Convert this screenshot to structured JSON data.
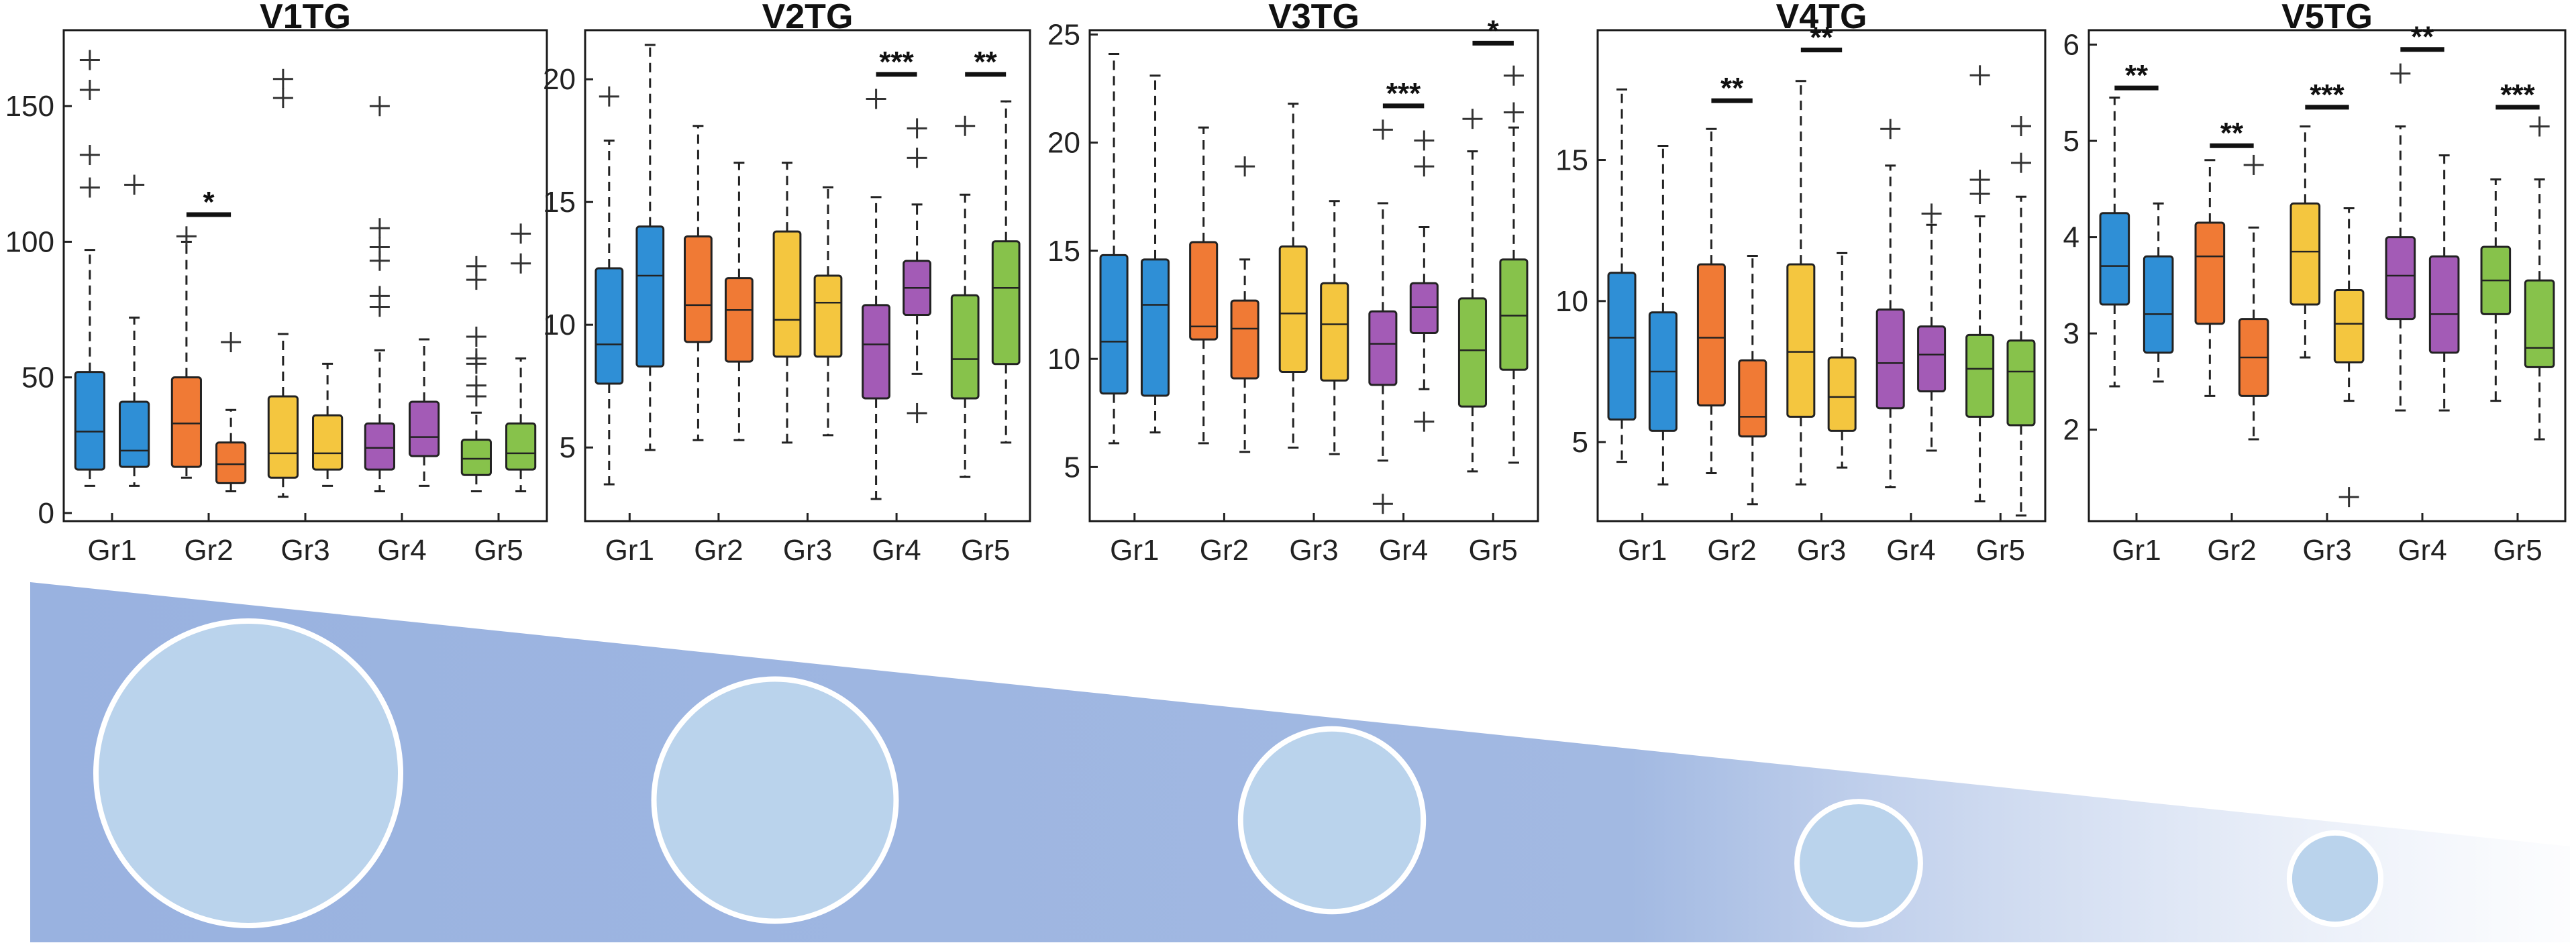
{
  "chart_data": [
    {
      "type": "box",
      "title": "V1TG",
      "ylim": [
        -3,
        178
      ],
      "yticks": [
        0,
        50,
        100,
        150
      ],
      "categories": [
        "Gr1",
        "Gr2",
        "Gr3",
        "Gr4",
        "Gr5"
      ],
      "colors": [
        "#2f8fd6",
        "#f07a35",
        "#f4c63f",
        "#a35bb6",
        "#87c24b"
      ],
      "boxes": [
        {
          "group": 0,
          "q1": 16,
          "median": 30,
          "q3": 52,
          "whisker_low": 10,
          "whisker_high": 97,
          "outliers": [
            167,
            156,
            132,
            120
          ]
        },
        {
          "group": 0,
          "q1": 17,
          "median": 23,
          "q3": 41,
          "whisker_low": 10,
          "whisker_high": 72,
          "outliers": [
            121
          ]
        },
        {
          "group": 1,
          "q1": 17,
          "median": 33,
          "q3": 50,
          "whisker_low": 13,
          "whisker_high": 100,
          "outliers": [
            102
          ]
        },
        {
          "group": 1,
          "q1": 11,
          "median": 18,
          "q3": 26,
          "whisker_low": 8,
          "whisker_high": 38,
          "outliers": [
            63
          ]
        },
        {
          "group": 2,
          "q1": 13,
          "median": 22,
          "q3": 43,
          "whisker_low": 6,
          "whisker_high": 66,
          "outliers": [
            160,
            153
          ]
        },
        {
          "group": 2,
          "q1": 16,
          "median": 22,
          "q3": 36,
          "whisker_low": 10,
          "whisker_high": 55,
          "outliers": []
        },
        {
          "group": 3,
          "q1": 16,
          "median": 24,
          "q3": 33,
          "whisker_low": 8,
          "whisker_high": 60,
          "outliers": [
            150,
            105,
            98,
            93,
            80,
            76
          ]
        },
        {
          "group": 3,
          "q1": 21,
          "median": 28,
          "q3": 41,
          "whisker_low": 10,
          "whisker_high": 64,
          "outliers": []
        },
        {
          "group": 4,
          "q1": 14,
          "median": 20,
          "q3": 27,
          "whisker_low": 8,
          "whisker_high": 37,
          "outliers": [
            91,
            86,
            65,
            57,
            55,
            47,
            43
          ]
        },
        {
          "group": 4,
          "q1": 16,
          "median": 22,
          "q3": 33,
          "whisker_low": 8,
          "whisker_high": 57,
          "outliers": [
            103,
            92
          ]
        }
      ],
      "significance": [
        {
          "group": 1,
          "label": "*",
          "y": 110
        }
      ]
    },
    {
      "type": "box",
      "title": "V2TG",
      "ylim": [
        2,
        22
      ],
      "yticks": [
        5,
        10,
        15,
        20
      ],
      "categories": [
        "Gr1",
        "Gr2",
        "Gr3",
        "Gr4",
        "Gr5"
      ],
      "colors": [
        "#2f8fd6",
        "#f07a35",
        "#f4c63f",
        "#a35bb6",
        "#87c24b"
      ],
      "boxes": [
        {
          "group": 0,
          "q1": 7.6,
          "median": 9.2,
          "q3": 12.3,
          "whisker_low": 3.5,
          "whisker_high": 17.5,
          "outliers": [
            19.3
          ]
        },
        {
          "group": 0,
          "q1": 8.3,
          "median": 12.0,
          "q3": 14.0,
          "whisker_low": 4.9,
          "whisker_high": 21.4,
          "outliers": []
        },
        {
          "group": 1,
          "q1": 9.3,
          "median": 10.8,
          "q3": 13.6,
          "whisker_low": 5.3,
          "whisker_high": 18.1,
          "outliers": []
        },
        {
          "group": 1,
          "q1": 8.5,
          "median": 10.6,
          "q3": 11.9,
          "whisker_low": 5.3,
          "whisker_high": 16.6,
          "outliers": []
        },
        {
          "group": 2,
          "q1": 8.7,
          "median": 10.2,
          "q3": 13.8,
          "whisker_low": 5.2,
          "whisker_high": 16.6,
          "outliers": []
        },
        {
          "group": 2,
          "q1": 8.7,
          "median": 10.9,
          "q3": 12.0,
          "whisker_low": 5.5,
          "whisker_high": 15.6,
          "outliers": []
        },
        {
          "group": 3,
          "q1": 7.0,
          "median": 9.2,
          "q3": 10.8,
          "whisker_low": 2.9,
          "whisker_high": 15.2,
          "outliers": [
            19.2
          ]
        },
        {
          "group": 3,
          "q1": 10.4,
          "median": 11.5,
          "q3": 12.6,
          "whisker_low": 8.0,
          "whisker_high": 14.9,
          "outliers": [
            18.0,
            16.8,
            6.4
          ]
        },
        {
          "group": 4,
          "q1": 7.0,
          "median": 8.6,
          "q3": 11.2,
          "whisker_low": 3.8,
          "whisker_high": 15.3,
          "outliers": [
            18.1
          ]
        },
        {
          "group": 4,
          "q1": 8.4,
          "median": 11.5,
          "q3": 13.4,
          "whisker_low": 5.2,
          "whisker_high": 19.1,
          "outliers": []
        }
      ],
      "significance": [
        {
          "group": 3,
          "label": "***",
          "y": 20.2
        },
        {
          "group": 4,
          "label": "**",
          "y": 20.2
        }
      ]
    },
    {
      "type": "box",
      "title": "V3TG",
      "ylim": [
        2.5,
        25.2
      ],
      "yticks": [
        5,
        10,
        15,
        20,
        25
      ],
      "categories": [
        "Gr1",
        "Gr2",
        "Gr3",
        "Gr4",
        "Gr5"
      ],
      "colors": [
        "#2f8fd6",
        "#f07a35",
        "#f4c63f",
        "#a35bb6",
        "#87c24b"
      ],
      "boxes": [
        {
          "group": 0,
          "q1": 8.4,
          "median": 10.8,
          "q3": 14.8,
          "whisker_low": 6.1,
          "whisker_high": 24.1,
          "outliers": []
        },
        {
          "group": 0,
          "q1": 8.3,
          "median": 12.5,
          "q3": 14.6,
          "whisker_low": 6.6,
          "whisker_high": 23.1,
          "outliers": []
        },
        {
          "group": 1,
          "q1": 10.9,
          "median": 11.5,
          "q3": 15.4,
          "whisker_low": 6.1,
          "whisker_high": 20.7,
          "outliers": []
        },
        {
          "group": 1,
          "q1": 9.1,
          "median": 11.4,
          "q3": 12.7,
          "whisker_low": 5.7,
          "whisker_high": 14.6,
          "outliers": [
            18.9
          ]
        },
        {
          "group": 2,
          "q1": 9.4,
          "median": 12.1,
          "q3": 15.2,
          "whisker_low": 5.9,
          "whisker_high": 21.8,
          "outliers": []
        },
        {
          "group": 2,
          "q1": 9.0,
          "median": 11.6,
          "q3": 13.5,
          "whisker_low": 5.6,
          "whisker_high": 17.3,
          "outliers": []
        },
        {
          "group": 3,
          "q1": 8.8,
          "median": 10.7,
          "q3": 12.2,
          "whisker_low": 5.3,
          "whisker_high": 17.2,
          "outliers": [
            20.6,
            3.3
          ]
        },
        {
          "group": 3,
          "q1": 11.2,
          "median": 12.4,
          "q3": 13.5,
          "whisker_low": 8.6,
          "whisker_high": 16.1,
          "outliers": [
            20.1,
            18.9,
            7.1
          ]
        },
        {
          "group": 4,
          "q1": 7.8,
          "median": 10.4,
          "q3": 12.8,
          "whisker_low": 4.8,
          "whisker_high": 19.6,
          "outliers": [
            21.1
          ]
        },
        {
          "group": 4,
          "q1": 9.5,
          "median": 12.0,
          "q3": 14.6,
          "whisker_low": 5.2,
          "whisker_high": 20.7,
          "outliers": [
            23.1,
            21.4
          ]
        }
      ],
      "significance": [
        {
          "group": 3,
          "label": "***",
          "y": 21.7
        },
        {
          "group": 4,
          "label": "*",
          "y": 24.6
        }
      ]
    },
    {
      "type": "box",
      "title": "V4TG",
      "ylim": [
        2.2,
        19.6
      ],
      "yticks": [
        5,
        10,
        15
      ],
      "categories": [
        "Gr1",
        "Gr2",
        "Gr3",
        "Gr4",
        "Gr5"
      ],
      "colors": [
        "#2f8fd6",
        "#f07a35",
        "#f4c63f",
        "#a35bb6",
        "#87c24b"
      ],
      "boxes": [
        {
          "group": 0,
          "q1": 5.8,
          "median": 8.7,
          "q3": 11.0,
          "whisker_low": 4.3,
          "whisker_high": 17.5,
          "outliers": []
        },
        {
          "group": 0,
          "q1": 5.4,
          "median": 7.5,
          "q3": 9.6,
          "whisker_low": 3.5,
          "whisker_high": 15.5,
          "outliers": []
        },
        {
          "group": 1,
          "q1": 6.3,
          "median": 8.7,
          "q3": 11.3,
          "whisker_low": 3.9,
          "whisker_high": 16.1,
          "outliers": []
        },
        {
          "group": 1,
          "q1": 5.2,
          "median": 5.9,
          "q3": 7.9,
          "whisker_low": 2.8,
          "whisker_high": 11.6,
          "outliers": []
        },
        {
          "group": 2,
          "q1": 5.9,
          "median": 8.2,
          "q3": 11.3,
          "whisker_low": 3.5,
          "whisker_high": 17.8,
          "outliers": []
        },
        {
          "group": 2,
          "q1": 5.4,
          "median": 6.6,
          "q3": 8.0,
          "whisker_low": 4.1,
          "whisker_high": 11.7,
          "outliers": []
        },
        {
          "group": 3,
          "q1": 6.2,
          "median": 7.8,
          "q3": 9.7,
          "whisker_low": 3.4,
          "whisker_high": 14.8,
          "outliers": [
            16.1
          ]
        },
        {
          "group": 3,
          "q1": 6.8,
          "median": 8.1,
          "q3": 9.1,
          "whisker_low": 4.7,
          "whisker_high": 12.7,
          "outliers": [
            13.1
          ]
        },
        {
          "group": 4,
          "q1": 5.9,
          "median": 7.6,
          "q3": 8.8,
          "whisker_low": 2.9,
          "whisker_high": 13.0,
          "outliers": [
            18.0,
            14.3,
            13.8
          ]
        },
        {
          "group": 4,
          "q1": 5.6,
          "median": 7.5,
          "q3": 8.6,
          "whisker_low": 2.4,
          "whisker_high": 13.7,
          "outliers": [
            16.2,
            14.9
          ]
        }
      ],
      "significance": [
        {
          "group": 1,
          "label": "**",
          "y": 17.1
        },
        {
          "group": 2,
          "label": "**",
          "y": 18.9
        }
      ]
    },
    {
      "type": "box",
      "title": "V5TG",
      "ylim": [
        1.05,
        6.15
      ],
      "yticks": [
        2,
        3,
        4,
        5,
        6
      ],
      "categories": [
        "Gr1",
        "Gr2",
        "Gr3",
        "Gr4",
        "Gr5"
      ],
      "colors": [
        "#2f8fd6",
        "#f07a35",
        "#f4c63f",
        "#a35bb6",
        "#87c24b"
      ],
      "boxes": [
        {
          "group": 0,
          "q1": 3.3,
          "median": 3.7,
          "q3": 4.25,
          "whisker_low": 2.45,
          "whisker_high": 5.45,
          "outliers": []
        },
        {
          "group": 0,
          "q1": 2.8,
          "median": 3.2,
          "q3": 3.8,
          "whisker_low": 2.5,
          "whisker_high": 4.35,
          "outliers": []
        },
        {
          "group": 1,
          "q1": 3.1,
          "median": 3.8,
          "q3": 4.15,
          "whisker_low": 2.35,
          "whisker_high": 4.8,
          "outliers": []
        },
        {
          "group": 1,
          "q1": 2.35,
          "median": 2.75,
          "q3": 3.15,
          "whisker_low": 1.9,
          "whisker_high": 4.1,
          "outliers": [
            4.75
          ]
        },
        {
          "group": 2,
          "q1": 3.3,
          "median": 3.85,
          "q3": 4.35,
          "whisker_low": 2.75,
          "whisker_high": 5.15,
          "outliers": []
        },
        {
          "group": 2,
          "q1": 2.7,
          "median": 3.1,
          "q3": 3.45,
          "whisker_low": 2.3,
          "whisker_high": 4.3,
          "outliers": [
            1.3
          ]
        },
        {
          "group": 3,
          "q1": 3.15,
          "median": 3.6,
          "q3": 4.0,
          "whisker_low": 2.2,
          "whisker_high": 5.15,
          "outliers": [
            5.7
          ]
        },
        {
          "group": 3,
          "q1": 2.8,
          "median": 3.2,
          "q3": 3.8,
          "whisker_low": 2.2,
          "whisker_high": 4.85,
          "outliers": []
        },
        {
          "group": 4,
          "q1": 3.2,
          "median": 3.55,
          "q3": 3.9,
          "whisker_low": 2.3,
          "whisker_high": 4.6,
          "outliers": []
        },
        {
          "group": 4,
          "q1": 2.65,
          "median": 2.85,
          "q3": 3.55,
          "whisker_low": 1.9,
          "whisker_high": 4.6,
          "outliers": [
            5.15
          ]
        }
      ],
      "significance": [
        {
          "group": 0,
          "label": "**",
          "y": 5.55
        },
        {
          "group": 1,
          "label": "**",
          "y": 4.95
        },
        {
          "group": 2,
          "label": "***",
          "y": 5.35
        },
        {
          "group": 3,
          "label": "**",
          "y": 5.95
        },
        {
          "group": 4,
          "label": "***",
          "y": 5.35
        }
      ]
    }
  ],
  "illustration": {
    "wedge_color": "#99b2e0",
    "circle_fill": "#bad3ec",
    "circle_count": 5,
    "relative_sizes": [
      1.0,
      0.795,
      0.6,
      0.405,
      0.3
    ]
  }
}
